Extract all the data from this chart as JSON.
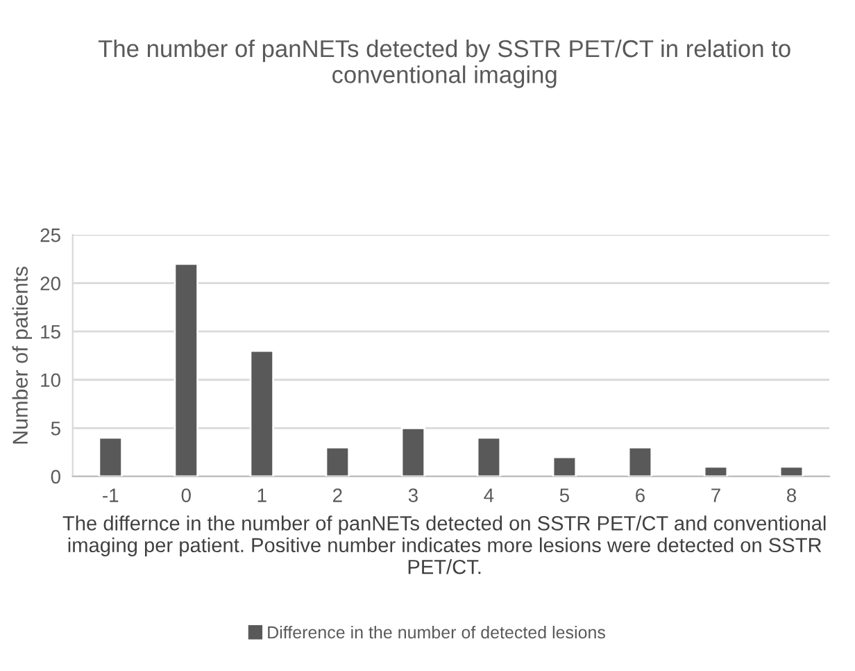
{
  "chart_data": {
    "type": "bar",
    "title": "The number of panNETs detected by SSTR PET/CT in relation to conventional imaging",
    "xlabel": "The differnce in the number of panNETs detected on SSTR PET/CT and conventional imaging per patient. Positive number indicates more lesions were detected on SSTR PET/CT.",
    "ylabel": "Number of patients",
    "categories": [
      "-1",
      "0",
      "1",
      "2",
      "3",
      "4",
      "5",
      "6",
      "7",
      "8"
    ],
    "series": [
      {
        "name": "Difference in the number of detected lesions",
        "color": "#595959",
        "values": [
          4,
          22,
          13,
          3,
          5,
          4,
          2,
          3,
          1,
          1
        ]
      }
    ],
    "ylim": [
      0,
      25
    ],
    "yticks": [
      0,
      5,
      10,
      15,
      20,
      25
    ],
    "grid": "y",
    "legend": "bottom"
  }
}
